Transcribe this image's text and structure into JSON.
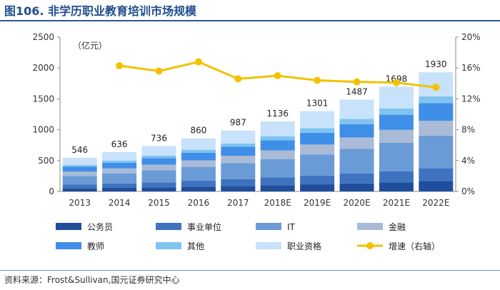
{
  "header": {
    "title": "图106. 非学历职业教育培训市场规模"
  },
  "footer": {
    "source": "资料来源：Frost&Sullivan,国元证券研究中心"
  },
  "chart_data": {
    "type": "bar",
    "stacked": true,
    "unit_label": "（亿元）",
    "categories": [
      "2013",
      "2014",
      "2015",
      "2016",
      "2017",
      "2018E",
      "2019E",
      "2020E",
      "2021E",
      "2022E"
    ],
    "totals": [
      546,
      636,
      736,
      860,
      987,
      1136,
      1301,
      1487,
      1698,
      1930
    ],
    "series": [
      {
        "name": "公务员",
        "color": "#1f4e9c",
        "values": [
          50,
          58,
          67,
          78,
          90,
          100,
          115,
          130,
          148,
          170
        ]
      },
      {
        "name": "事业单位",
        "color": "#3f73c0",
        "values": [
          60,
          70,
          80,
          95,
          108,
          125,
          140,
          160,
          180,
          205
        ]
      },
      {
        "name": "IT",
        "color": "#6a9bd6",
        "values": [
          140,
          165,
          195,
          225,
          260,
          300,
          345,
          400,
          460,
          530
        ]
      },
      {
        "name": "金融",
        "color": "#a9bbd6",
        "values": [
          70,
          80,
          92,
          105,
          120,
          140,
          160,
          185,
          210,
          240
        ]
      },
      {
        "name": "教师",
        "color": "#3f8ee8",
        "values": [
          80,
          92,
          105,
          125,
          145,
          165,
          190,
          215,
          245,
          285
        ]
      },
      {
        "name": "其他",
        "color": "#7fc4f0",
        "values": [
          30,
          36,
          42,
          48,
          55,
          65,
          75,
          87,
          100,
          110
        ]
      },
      {
        "name": "职业资格",
        "color": "#c7e2fa",
        "values": [
          116,
          135,
          155,
          184,
          209,
          241,
          276,
          310,
          355,
          390
        ]
      }
    ],
    "growth": {
      "name": "增速（右轴）",
      "color": "#f2c200",
      "start_index": 1,
      "values": [
        16.3,
        15.6,
        16.8,
        14.6,
        15.0,
        14.4,
        14.2,
        14.1,
        13.5
      ]
    },
    "left_axis": {
      "min": 0,
      "max": 2500,
      "ticks": [
        "0",
        "500",
        "1000",
        "1500",
        "2000",
        "2500"
      ]
    },
    "right_axis": {
      "min": 0,
      "max": 20,
      "ticks": [
        "0%",
        "4%",
        "8%",
        "12%",
        "16%",
        "20%"
      ]
    },
    "grid": false,
    "legend_position": "bottom"
  }
}
